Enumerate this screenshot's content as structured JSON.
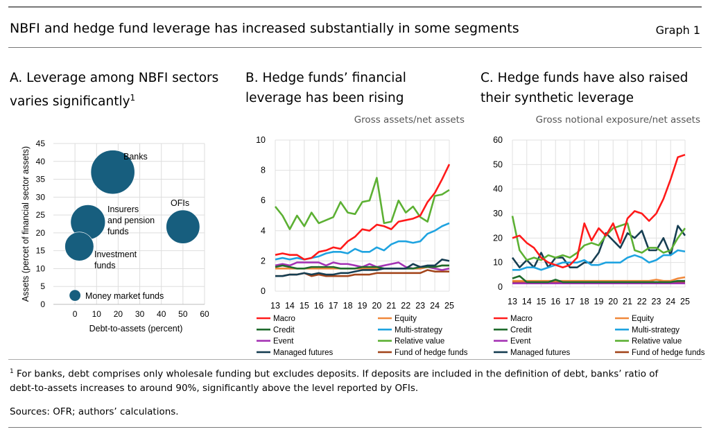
{
  "header": {
    "title": "NBFI and hedge fund leverage has increased substantially in some segments",
    "graph": "Graph 1"
  },
  "colors": {
    "Macro": "#ff1a1a",
    "Equity": "#f0883a",
    "Credit": "#1f6b2c",
    "Multi-strategy": "#1ea3e0",
    "Event": "#a433b4",
    "Relative value": "#5cb033",
    "Managed futures": "#163e52",
    "Fund of hedge funds": "#a3461c",
    "bubble": "#175e7e"
  },
  "panels": {
    "a": {
      "title1": "A. Leverage among NBFI sectors",
      "title2": "varies significantly",
      "sup": "1"
    },
    "b": {
      "title1": "B.  Hedge funds’ financial",
      "title2": "leverage has been rising",
      "unit": "Gross assets/net assets"
    },
    "c": {
      "title1": "C.  Hedge funds have also raised",
      "title2": "their synthetic leverage",
      "unit": "Gross notional exposure/net assets"
    }
  },
  "chart_data": [
    {
      "type": "scatter",
      "title": "Leverage among NBFI sectors varies significantly",
      "xlabel": "Debt-to-assets (percent)",
      "ylabel": "Assets (percet of financial sector assets)",
      "xlim": [
        -10,
        60
      ],
      "ylim": [
        0,
        45
      ],
      "xticks": [
        0,
        10,
        20,
        30,
        40,
        50,
        60
      ],
      "yticks": [
        0,
        5,
        10,
        15,
        20,
        25,
        30,
        35,
        40,
        45
      ],
      "grid": true,
      "points": [
        {
          "label": "Banks",
          "x": 17.5,
          "y": 37,
          "size": 37
        },
        {
          "label": "Insurers and pension funds",
          "x": 6,
          "y": 23,
          "size": 23
        },
        {
          "label": "Investment funds",
          "x": 2,
          "y": 16.2,
          "size": 16
        },
        {
          "label": "OFIs",
          "x": 50,
          "y": 21.7,
          "size": 21.7
        },
        {
          "label": "Money market funds",
          "x": 0,
          "y": 2.5,
          "size": 2.5
        }
      ]
    },
    {
      "type": "line",
      "title": "Hedge funds’ financial leverage has been rising",
      "ylabel": "Gross assets/net assets",
      "ylim": [
        0,
        10
      ],
      "yticks": [
        0,
        2,
        4,
        6,
        8,
        10
      ],
      "xlim": [
        13,
        25
      ],
      "xticks": [
        "13",
        "14",
        "15",
        "16",
        "17",
        "18",
        "19",
        "20",
        "21",
        "22",
        "23",
        "24",
        "25"
      ],
      "grid": true,
      "legend": "bottom",
      "series": [
        {
          "name": "Macro",
          "values": [
            2.4,
            2.5,
            2.4,
            2.4,
            2.1,
            2.2,
            2.6,
            2.7,
            2.9,
            2.8,
            3.3,
            3.6,
            4.1,
            4.0,
            4.4,
            4.3,
            4.1,
            4.6,
            4.7,
            4.8,
            5.0,
            5.9,
            6.5,
            7.4,
            8.4
          ]
        },
        {
          "name": "Equity",
          "values": [
            1.5,
            1.5,
            1.5,
            1.5,
            1.5,
            1.5,
            1.5,
            1.5,
            1.5,
            1.5,
            1.5,
            1.5,
            1.5,
            1.5,
            1.5,
            1.5,
            1.5,
            1.5,
            1.5,
            1.5,
            1.5,
            1.6,
            1.6,
            1.7,
            1.7
          ]
        },
        {
          "name": "Credit",
          "values": [
            1.6,
            1.7,
            1.6,
            1.5,
            1.5,
            1.6,
            1.6,
            1.6,
            1.6,
            1.5,
            1.5,
            1.5,
            1.6,
            1.6,
            1.6,
            1.5,
            1.5,
            1.5,
            1.5,
            1.5,
            1.6,
            1.6,
            1.6,
            1.7,
            1.7
          ]
        },
        {
          "name": "Multi-strategy",
          "values": [
            2.1,
            2.2,
            2.1,
            2.2,
            2.1,
            2.2,
            2.3,
            2.5,
            2.6,
            2.6,
            2.5,
            2.8,
            2.6,
            2.6,
            2.9,
            2.7,
            3.1,
            3.3,
            3.3,
            3.2,
            3.3,
            3.8,
            4.0,
            4.3,
            4.5
          ]
        },
        {
          "name": "Event",
          "values": [
            1.7,
            1.8,
            1.7,
            1.9,
            1.9,
            1.9,
            1.9,
            1.7,
            1.9,
            1.8,
            1.8,
            1.7,
            1.6,
            1.8,
            1.6,
            1.7,
            1.8,
            1.9,
            1.6,
            1.5,
            1.5,
            1.6,
            1.5,
            1.4,
            1.5
          ]
        },
        {
          "name": "Relative value",
          "values": [
            5.6,
            5.0,
            4.1,
            5.0,
            4.3,
            5.2,
            4.5,
            4.7,
            4.9,
            5.9,
            5.2,
            5.1,
            5.9,
            6.0,
            7.5,
            4.5,
            4.6,
            6.0,
            5.2,
            5.6,
            4.9,
            4.6,
            6.3,
            6.4,
            6.7
          ]
        },
        {
          "name": "Managed futures",
          "values": [
            1.0,
            1.0,
            1.1,
            1.1,
            1.2,
            1.1,
            1.2,
            1.1,
            1.1,
            1.2,
            1.2,
            1.3,
            1.4,
            1.4,
            1.4,
            1.5,
            1.5,
            1.5,
            1.5,
            1.8,
            1.6,
            1.7,
            1.7,
            2.1,
            2.0
          ]
        },
        {
          "name": "Fund of hedge funds",
          "values": [
            1.0,
            1.0,
            1.1,
            1.1,
            1.2,
            1.0,
            1.1,
            1.0,
            1.0,
            1.0,
            1.0,
            1.1,
            1.1,
            1.1,
            1.2,
            1.2,
            1.2,
            1.2,
            1.2,
            1.2,
            1.2,
            1.4,
            1.3,
            1.3,
            1.3
          ]
        }
      ]
    },
    {
      "type": "line",
      "title": "Hedge funds have also raised their synthetic leverage",
      "ylabel": "Gross notional exposure/net assets",
      "ylim": [
        0,
        60
      ],
      "yticks": [
        0,
        10,
        20,
        30,
        40,
        50,
        60
      ],
      "xlim": [
        13,
        25
      ],
      "xticks": [
        "13",
        "14",
        "15",
        "16",
        "17",
        "18",
        "19",
        "20",
        "21",
        "22",
        "23",
        "24",
        "25"
      ],
      "grid": true,
      "legend": "bottom",
      "series": [
        {
          "name": "Macro",
          "values": [
            20,
            21,
            18,
            16,
            12,
            10,
            9,
            8,
            9,
            12,
            26,
            19,
            24,
            21,
            26,
            18,
            28,
            31,
            30,
            27,
            30,
            36,
            44,
            53,
            54
          ]
        },
        {
          "name": "Equity",
          "values": [
            2.5,
            2.5,
            2.5,
            2.5,
            2.5,
            2.5,
            2.5,
            2.5,
            2.5,
            2.5,
            2.5,
            2.5,
            2.5,
            2.5,
            2.5,
            2.5,
            2.5,
            2.5,
            2.5,
            2.5,
            3,
            2.5,
            2.5,
            3.5,
            4
          ]
        },
        {
          "name": "Credit",
          "values": [
            3.5,
            4.5,
            2,
            2,
            2,
            2,
            3,
            2,
            2,
            2,
            2,
            2,
            2,
            2,
            2,
            2,
            2,
            2,
            2,
            2,
            2,
            2,
            2,
            2.5,
            2.5
          ]
        },
        {
          "name": "Multi-strategy",
          "values": [
            7,
            7,
            8,
            8,
            7,
            8,
            9,
            10,
            10,
            10,
            11,
            9,
            9,
            10,
            10,
            10,
            12,
            13,
            12,
            10,
            11,
            13,
            13,
            15,
            14.5
          ]
        },
        {
          "name": "Event",
          "values": [
            1.5,
            1.5,
            1.5,
            1.5,
            1.5,
            1.5,
            1.5,
            1.5,
            1.5,
            1.5,
            1.5,
            1.5,
            1.5,
            1.5,
            1.5,
            1.5,
            1.5,
            1.5,
            1.5,
            1.5,
            1.5,
            1.5,
            1.5,
            1.5,
            1.5
          ]
        },
        {
          "name": "Relative value",
          "values": [
            29,
            15,
            11,
            12,
            11,
            13,
            12,
            13,
            12,
            14,
            17,
            18,
            17,
            21,
            24,
            25,
            26,
            15,
            14,
            16,
            16,
            14,
            15,
            20,
            24
          ]
        },
        {
          "name": "Managed futures",
          "values": [
            12,
            8,
            11,
            8,
            14,
            8,
            12,
            12,
            8,
            8,
            10,
            10,
            14,
            22,
            19,
            16,
            22,
            20,
            23,
            15,
            15,
            20,
            13,
            25,
            21
          ]
        },
        {
          "name": "Fund of hedge funds",
          "values": [
            2,
            2,
            2,
            2,
            2,
            2,
            2,
            2,
            1.5,
            1.5,
            1.5,
            2,
            2.5,
            2,
            2,
            1.5,
            1.5,
            2,
            2,
            2,
            2,
            2,
            2,
            2,
            2
          ]
        }
      ]
    }
  ],
  "footnote": {
    "sup": "1",
    "text1": " For banks, debt comprises only wholesale funding but excludes deposits. If deposits are included in the definition of debt, banks’ ratio of",
    "text2": "debt-to-assets increases to around 90%, significantly above the level reported by OFIs.",
    "sources": "Sources: OFR; authors’ calculations."
  }
}
